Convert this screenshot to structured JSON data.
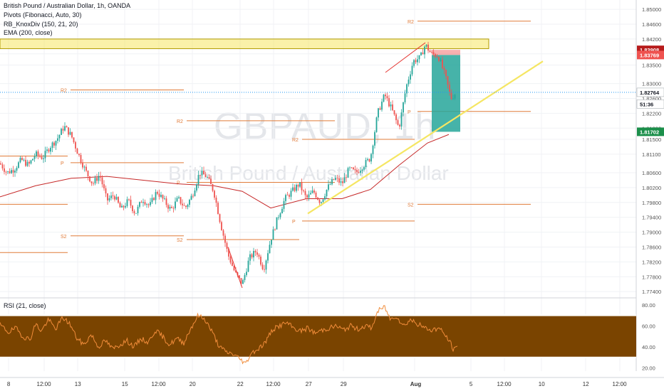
{
  "header": {
    "symbol_line": "British Pound / Australian Dollar, 1h, OANDA",
    "indicators": [
      "Pivots (Fibonacci, Auto, 30)",
      "RB_KnoxDiv (150, 21, 20)",
      "EMA (200, close)"
    ]
  },
  "watermark": {
    "ticker": "GBPAUD, 1h",
    "name": "British Pound / Australian Dollar"
  },
  "colors": {
    "candle_up": "#26a69a",
    "candle_down": "#ef5350",
    "ema": "#c62828",
    "pivot": "#e07b39",
    "trendline": "#f5e663",
    "supply_zone": "#f5e663",
    "rsi_line": "#f08c3a",
    "rsi_band": "#7a4400",
    "current_price_line": "#2196f3",
    "stop_zone": "#ef5350",
    "target_zone": "#26a69a"
  },
  "chart_data": [
    {
      "type": "candlestick",
      "title": "British Pound / Australian Dollar, 1h, OANDA",
      "ylim": [
        1.7725,
        1.8525
      ],
      "y_ticks": [
        "1.85000",
        "1.84600",
        "1.84200",
        "1.83800",
        "1.83500",
        "1.83000",
        "1.82600",
        "1.82200",
        "1.81800",
        "1.81500",
        "1.81100",
        "1.80600",
        "1.80200",
        "1.79800",
        "1.79400",
        "1.79000",
        "1.78600",
        "1.78200",
        "1.77800",
        "1.77400"
      ],
      "x_ticks": [
        "8",
        "12:00",
        "13",
        "15",
        "12:00",
        "20",
        "22",
        "12:00",
        "27",
        "29",
        "Aug",
        "5",
        "12:00",
        "10",
        "12",
        "12:00"
      ],
      "price_path": [
        [
          0,
          1.8085
        ],
        [
          10,
          1.806
        ],
        [
          20,
          1.807
        ],
        [
          30,
          1.8095
        ],
        [
          40,
          1.808
        ],
        [
          50,
          1.811
        ],
        [
          60,
          1.81
        ],
        [
          70,
          1.813
        ],
        [
          80,
          1.815
        ],
        [
          90,
          1.8185
        ],
        [
          100,
          1.816
        ],
        [
          110,
          1.811
        ],
        [
          120,
          1.8065
        ],
        [
          130,
          1.803
        ],
        [
          140,
          1.8055
        ],
        [
          150,
          1.7985
        ],
        [
          160,
          1.8
        ],
        [
          170,
          1.796
        ],
        [
          180,
          1.7985
        ],
        [
          190,
          1.795
        ],
        [
          200,
          1.799
        ],
        [
          210,
          1.797
        ],
        [
          220,
          1.801
        ],
        [
          230,
          1.7985
        ],
        [
          240,
          1.796
        ],
        [
          250,
          1.799
        ],
        [
          260,
          1.7965
        ],
        [
          270,
          1.8
        ],
        [
          280,
          1.806
        ],
        [
          290,
          1.805
        ],
        [
          300,
          1.801
        ],
        [
          310,
          1.792
        ],
        [
          320,
          1.784
        ],
        [
          330,
          1.779
        ],
        [
          340,
          1.776
        ],
        [
          350,
          1.783
        ],
        [
          360,
          1.785
        ],
        [
          370,
          1.78
        ],
        [
          380,
          1.788
        ],
        [
          390,
          1.794
        ],
        [
          400,
          1.799
        ],
        [
          410,
          1.801
        ],
        [
          420,
          1.803
        ],
        [
          430,
          1.799
        ],
        [
          440,
          1.801
        ],
        [
          450,
          1.798
        ],
        [
          460,
          1.802
        ],
        [
          470,
          1.8045
        ],
        [
          480,
          1.803
        ],
        [
          490,
          1.807
        ],
        [
          500,
          1.806
        ],
        [
          510,
          1.808
        ],
        [
          520,
          1.81
        ],
        [
          530,
          1.822
        ],
        [
          540,
          1.827
        ],
        [
          550,
          1.823
        ],
        [
          560,
          1.818
        ],
        [
          570,
          1.829
        ],
        [
          580,
          1.836
        ],
        [
          590,
          1.837
        ],
        [
          597,
          1.8405
        ],
        [
          605,
          1.838
        ],
        [
          615,
          1.8375
        ],
        [
          625,
          1.832
        ],
        [
          633,
          1.826
        ],
        [
          640,
          1.8276
        ]
      ],
      "ema_path": [
        [
          0,
          1.7995
        ],
        [
          50,
          1.8025
        ],
        [
          100,
          1.8045
        ],
        [
          150,
          1.805
        ],
        [
          200,
          1.804
        ],
        [
          250,
          1.803
        ],
        [
          300,
          1.8025
        ],
        [
          340,
          1.801
        ],
        [
          380,
          1.7965
        ],
        [
          430,
          1.799
        ],
        [
          480,
          1.799
        ],
        [
          520,
          1.8015
        ],
        [
          560,
          1.808
        ],
        [
          600,
          1.814
        ],
        [
          630,
          1.8163
        ]
      ],
      "pivot_levels": [
        {
          "label": "R2",
          "price": 1.8283,
          "x": [
            85,
            258
          ]
        },
        {
          "label": "P",
          "price": 1.8087,
          "x": [
            85,
            258
          ]
        },
        {
          "label": "S2",
          "price": 1.789,
          "x": [
            85,
            258
          ]
        },
        {
          "label": "",
          "price": 1.8105,
          "x": [
            0,
            95
          ]
        },
        {
          "label": "",
          "price": 1.7975,
          "x": [
            0,
            95
          ]
        },
        {
          "label": "",
          "price": 1.7845,
          "x": [
            0,
            95
          ]
        },
        {
          "label": "R2",
          "price": 1.82,
          "x": [
            248,
            470
          ]
        },
        {
          "label": "P",
          "price": 1.8034,
          "x": [
            248,
            470
          ]
        },
        {
          "label": "S2",
          "price": 1.788,
          "x": [
            248,
            420
          ]
        },
        {
          "label": "R2",
          "price": 1.815,
          "x": [
            410,
            582
          ]
        },
        {
          "label": "P",
          "price": 1.793,
          "x": [
            410,
            582
          ]
        },
        {
          "label": "R2",
          "price": 1.8468,
          "x": [
            572,
            745
          ]
        },
        {
          "label": "P",
          "price": 1.8225,
          "x": [
            572,
            745
          ]
        },
        {
          "label": "S2",
          "price": 1.7975,
          "x": [
            572,
            745
          ]
        }
      ],
      "trendline": [
        [
          432,
          1.795
        ],
        [
          762,
          1.836
        ]
      ],
      "divergence_lines": [
        {
          "points": [
            [
              320,
              1.786
            ],
            [
              340,
              1.775
            ]
          ]
        },
        {
          "points": [
            [
              541,
              1.833
            ],
            [
              597,
              1.841
            ]
          ]
        }
      ],
      "supply_zone": {
        "price_range": [
          1.8394,
          1.842
        ],
        "x": [
          0,
          686
        ]
      },
      "position": {
        "x": [
          606,
          646
        ],
        "entry": 1.83769,
        "stop": 1.83908,
        "target": 1.81702
      },
      "current_price_line": 1.82764,
      "price_labels": [
        {
          "text": "1.83908",
          "price": 1.83908,
          "kind": "stop"
        },
        {
          "text": "1.83769",
          "price": 1.83769,
          "kind": "entry"
        },
        {
          "text": "1.82764",
          "price": 1.82764,
          "kind": "current"
        },
        {
          "text": "51:36",
          "price": 1.8245,
          "kind": "countdown"
        },
        {
          "text": "1.81702",
          "price": 1.81702,
          "kind": "target"
        }
      ]
    },
    {
      "type": "line",
      "title": "RSI (21, close)",
      "ylim": [
        17,
        86
      ],
      "y_ticks": [
        "80.00",
        "60.00",
        "40.00",
        "20.00"
      ],
      "band": [
        30,
        70
      ],
      "rsi_path": [
        [
          0,
          61
        ],
        [
          12,
          54
        ],
        [
          22,
          58
        ],
        [
          32,
          50
        ],
        [
          42,
          47
        ],
        [
          50,
          62
        ],
        [
          58,
          55
        ],
        [
          68,
          66
        ],
        [
          78,
          57
        ],
        [
          88,
          68
        ],
        [
          98,
          62
        ],
        [
          108,
          48
        ],
        [
          118,
          42
        ],
        [
          128,
          52
        ],
        [
          138,
          40
        ],
        [
          148,
          46
        ],
        [
          158,
          38
        ],
        [
          168,
          42
        ],
        [
          178,
          46
        ],
        [
          188,
          40
        ],
        [
          198,
          48
        ],
        [
          208,
          44
        ],
        [
          218,
          56
        ],
        [
          228,
          50
        ],
        [
          238,
          42
        ],
        [
          248,
          48
        ],
        [
          258,
          44
        ],
        [
          268,
          58
        ],
        [
          278,
          70
        ],
        [
          288,
          66
        ],
        [
          298,
          54
        ],
        [
          308,
          40
        ],
        [
          318,
          35
        ],
        [
          328,
          33
        ],
        [
          338,
          28
        ],
        [
          345,
          24
        ],
        [
          352,
          34
        ],
        [
          362,
          38
        ],
        [
          372,
          44
        ],
        [
          382,
          56
        ],
        [
          392,
          60
        ],
        [
          402,
          63
        ],
        [
          412,
          58
        ],
        [
          422,
          55
        ],
        [
          432,
          58
        ],
        [
          442,
          53
        ],
        [
          452,
          56
        ],
        [
          462,
          58
        ],
        [
          472,
          60
        ],
        [
          482,
          56
        ],
        [
          492,
          60
        ],
        [
          502,
          57
        ],
        [
          512,
          60
        ],
        [
          522,
          58
        ],
        [
          530,
          74
        ],
        [
          540,
          78
        ],
        [
          548,
          66
        ],
        [
          556,
          70
        ],
        [
          566,
          60
        ],
        [
          576,
          66
        ],
        [
          586,
          62
        ],
        [
          596,
          58
        ],
        [
          606,
          56
        ],
        [
          616,
          58
        ],
        [
          624,
          52
        ],
        [
          632,
          44
        ],
        [
          637,
          37
        ],
        [
          642,
          40
        ]
      ]
    }
  ]
}
